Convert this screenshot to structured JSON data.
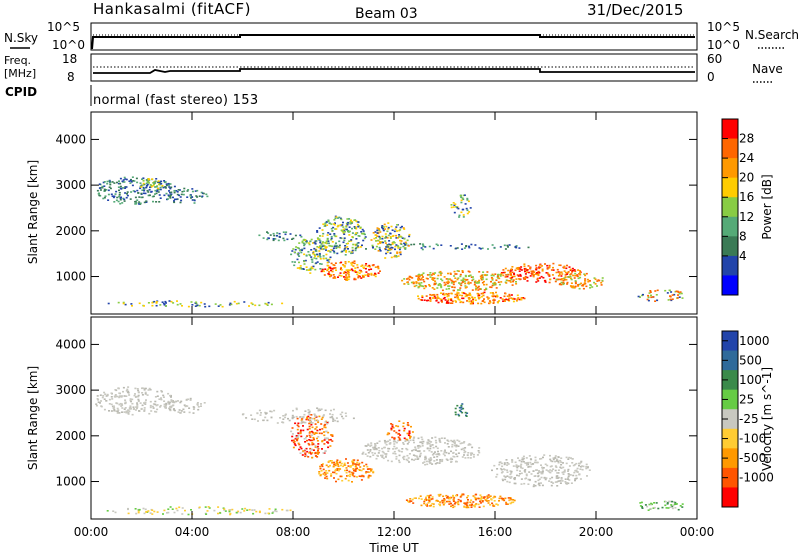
{
  "header": {
    "title": "Hankasalmi (fitACF)",
    "beam": "Beam 03",
    "date": "31/Dec/2015"
  },
  "aux_panels": {
    "nsky_label": "N.Sky",
    "nsky_ticks": [
      "10^5",
      "10^0"
    ],
    "nsearch_label": "N.Search",
    "nsearch_ticks": [
      "10^5",
      "10^0"
    ],
    "freq_label_1": "Freq.",
    "freq_label_2": "[MHz]",
    "freq_ticks": [
      "18",
      "8"
    ],
    "nave_label": "Nave",
    "nave_ticks": [
      "60",
      "0"
    ],
    "cpid_label": "CPID",
    "cpid_text": "normal (fast stereo) 153"
  },
  "chart_data": [
    {
      "type": "heatmap",
      "name": "power-panel",
      "ylabel": "Slant Range [km]",
      "yticks": [
        "4000",
        "3000",
        "2000",
        "1000"
      ],
      "ylim": [
        180,
        4600
      ],
      "colorbar_label": "Power [dB]",
      "colorbar_ticks": [
        "28",
        "24",
        "20",
        "16",
        "12",
        "8",
        "4"
      ],
      "colorbar_colors": [
        "#ff0000",
        "#ff6600",
        "#ff9900",
        "#ffcc00",
        "#88cc44",
        "#55aa77",
        "#3a7a55",
        "#2244aa",
        "#0000ff"
      ]
    },
    {
      "type": "heatmap",
      "name": "velocity-panel",
      "ylabel": "Slant Range [km]",
      "yticks": [
        "4000",
        "3000",
        "2000",
        "1000"
      ],
      "ylim": [
        180,
        4600
      ],
      "xlabel": "Time UT",
      "xticks": [
        "00:00",
        "04:00",
        "08:00",
        "12:00",
        "16:00",
        "20:00",
        "00:00"
      ],
      "colorbar_label": "Velocity [m s^-1]",
      "colorbar_ticks": [
        "1000",
        "500",
        "100",
        "25",
        "-25",
        "-100",
        "-500",
        "-1000"
      ],
      "colorbar_colors": [
        "#2244aa",
        "#2f6a9a",
        "#3a8a4a",
        "#66cc44",
        "#c8c8c0",
        "#ffcc33",
        "#ff9900",
        "#ff5500",
        "#ff0000"
      ]
    }
  ]
}
